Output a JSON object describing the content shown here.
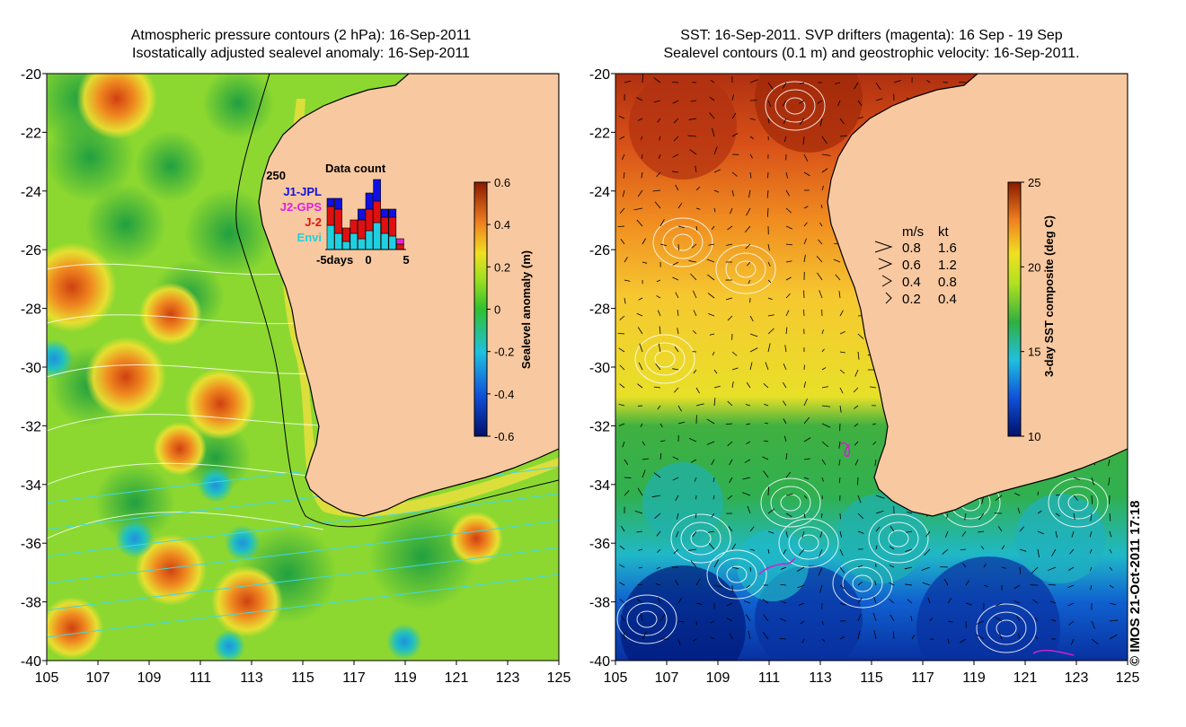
{
  "left_map": {
    "title_line1": "Atmospheric pressure contours (2 hPa): 16-Sep-2011",
    "title_line2": "Isostatically adjusted sealevel anomaly: 16-Sep-2011",
    "colorbar_label": "Sealevel anomaly (m)",
    "colorbar_ticks": [
      "0.6",
      "0.4",
      "0.2",
      "0",
      "-0.2",
      "-0.4",
      "-0.6"
    ],
    "y_ticks": [
      "-20",
      "-22",
      "-24",
      "-26",
      "-28",
      "-30",
      "-32",
      "-34",
      "-36",
      "-38",
      "-40"
    ],
    "x_ticks": [
      "105",
      "107",
      "109",
      "111",
      "113",
      "115",
      "117",
      "119",
      "121",
      "123",
      "125"
    ]
  },
  "inset": {
    "title": "Data count",
    "ymax_label": "250",
    "x_labels": [
      "-5days",
      "0",
      "5"
    ],
    "legend": [
      {
        "label": "J1-JPL",
        "color": "#1010e0"
      },
      {
        "label": "J2-GPS",
        "color": "#e020e0"
      },
      {
        "label": "J-2",
        "color": "#e01010"
      },
      {
        "label": "Envi",
        "color": "#20d0e0"
      }
    ],
    "bars": [
      {
        "envi": 90,
        "j2": 70,
        "j1": 30
      },
      {
        "envi": 60,
        "j2": 90,
        "j1": 40
      },
      {
        "envi": 30,
        "j2": 50,
        "j1": 0
      },
      {
        "envi": 60,
        "j2": 50,
        "j1": 0
      },
      {
        "envi": 40,
        "j2": 70,
        "j1": 40
      },
      {
        "envi": 70,
        "j2": 80,
        "j1": 60
      },
      {
        "envi": 100,
        "j2": 80,
        "j1": 80
      },
      {
        "envi": 60,
        "j2": 60,
        "j1": 30
      },
      {
        "envi": 50,
        "j2": 70,
        "j1": 30
      },
      {
        "envi": 0,
        "j2": 20,
        "j1": 0,
        "j2gps": 20
      }
    ]
  },
  "right_map": {
    "title_line1": "SST: 16-Sep-2011. SVP drifters (magenta): 16 Sep - 19 Sep",
    "title_line2": "Sealevel contours (0.1 m) and geostrophic velocity: 16-Sep-2011.",
    "colorbar_label": "3-day SST composite (deg C)",
    "colorbar_ticks": [
      "25",
      "20",
      "15",
      "10"
    ],
    "y_ticks": [
      "-20",
      "-22",
      "-24",
      "-26",
      "-28",
      "-30",
      "-32",
      "-34",
      "-36",
      "-38",
      "-40"
    ],
    "x_ticks": [
      "105",
      "107",
      "109",
      "111",
      "113",
      "115",
      "117",
      "119",
      "121",
      "123",
      "125"
    ]
  },
  "velocity_legend": {
    "header_ms": "m/s",
    "header_kt": "kt",
    "rows": [
      {
        "ms": "0.8",
        "kt": "1.6"
      },
      {
        "ms": "0.6",
        "kt": "1.2"
      },
      {
        "ms": "0.4",
        "kt": "0.8"
      },
      {
        "ms": "0.2",
        "kt": "0.4"
      }
    ]
  },
  "credit": "© IMOS 21-Oct-2011 17:18",
  "colors": {
    "land": "#f8c8a0",
    "coast": "#000000",
    "contour": "#ffffff",
    "pressure_contour": "#40d8e8"
  }
}
